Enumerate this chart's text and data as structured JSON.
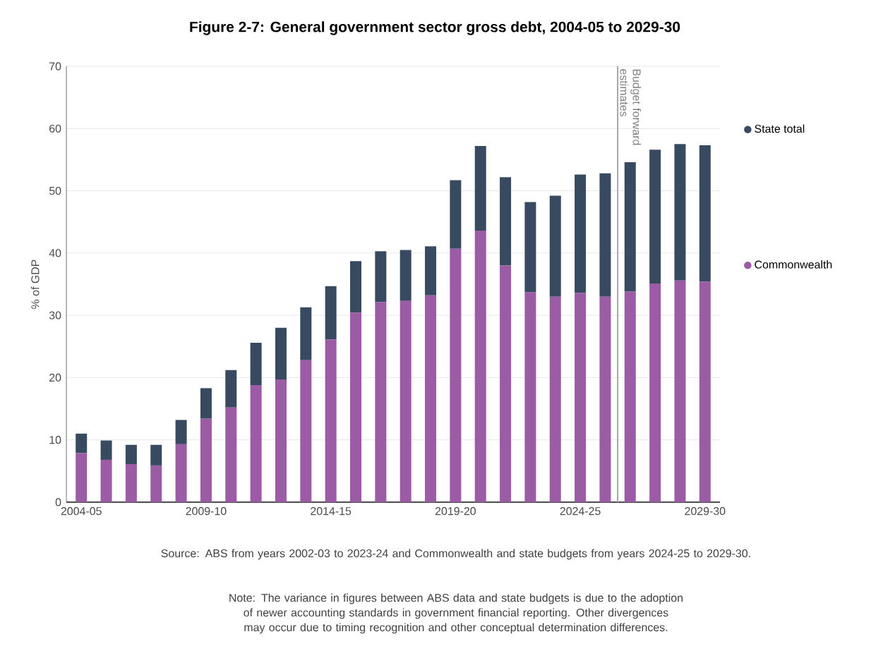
{
  "chart_data": {
    "type": "bar",
    "stacked": true,
    "title": "Figure 2-7: General government sector gross debt, 2004-05 to 2029-30",
    "ylabel": "% of GDP",
    "categories": [
      "2004-05",
      null,
      null,
      null,
      null,
      "2009-10",
      null,
      null,
      null,
      null,
      "2014-15",
      null,
      null,
      null,
      null,
      "2019-20",
      null,
      null,
      null,
      null,
      "2024-25",
      null,
      null,
      null,
      null,
      "2029-30"
    ],
    "series": [
      {
        "name": "Commonwealth",
        "color": "#9b5ba5",
        "values": [
          7.9,
          6.8,
          6.1,
          5.9,
          9.3,
          13.4,
          15.2,
          18.8,
          19.7,
          22.8,
          26.1,
          30.4,
          32.1,
          32.3,
          33.2,
          40.7,
          43.6,
          38.0,
          33.7,
          33.0,
          33.6,
          33.0,
          33.8,
          35.1,
          35.6,
          35.4
        ]
      },
      {
        "name": "State total",
        "color": "#374a60",
        "values": [
          3.1,
          3.1,
          3.1,
          3.3,
          3.9,
          4.9,
          6.0,
          6.8,
          8.3,
          8.5,
          8.6,
          8.3,
          8.2,
          8.2,
          7.9,
          11.0,
          13.6,
          14.2,
          14.5,
          16.2,
          19.0,
          19.8,
          20.8,
          21.5,
          21.9,
          21.9
        ]
      }
    ],
    "ylim": [
      0,
      70
    ],
    "yticks": [
      0,
      10,
      20,
      30,
      40,
      50,
      60,
      70
    ],
    "grid": "y",
    "legend": "right",
    "annotations": [
      "Budget forward estimates",
      "Source: ABS from years 2002-03 to 2023-24 and Commonwealth and state budgets from years 2024-25 to 2029-30.",
      "Note: The variance in figures between ABS data and state budgets is due to the adoption of newer accounting standards in government financial reporting. Other divergences may occur due to timing recognition and other conceptual determination differences."
    ]
  }
}
